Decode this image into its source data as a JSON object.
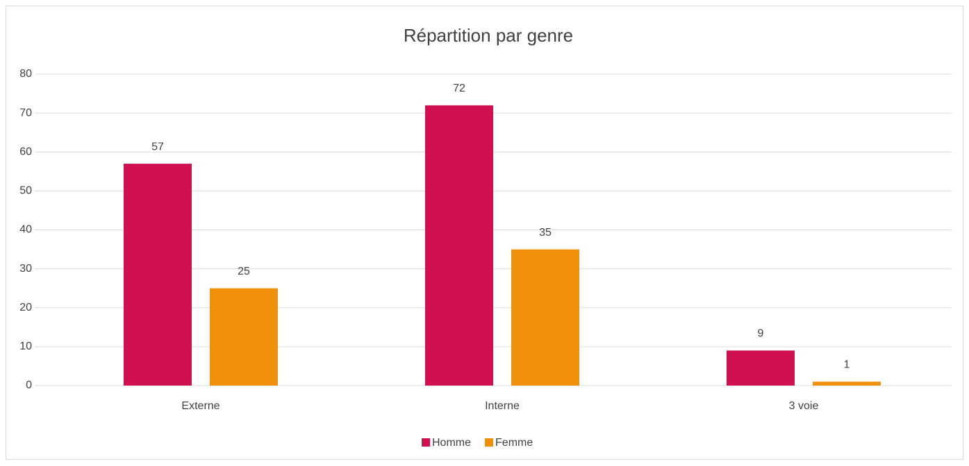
{
  "chart_data": {
    "type": "bar",
    "title": "Répartition par genre",
    "categories": [
      "Externe",
      "Interne",
      "3 voie"
    ],
    "series": [
      {
        "name": "Homme",
        "color": "#d0104f",
        "values": [
          57,
          72,
          9
        ]
      },
      {
        "name": "Femme",
        "color": "#f0900a",
        "values": [
          25,
          35,
          1
        ]
      }
    ],
    "ylim": [
      0,
      80
    ],
    "yticks": [
      0,
      10,
      20,
      30,
      40,
      50,
      60,
      70,
      80
    ],
    "grid": true,
    "legend": "bottom"
  }
}
